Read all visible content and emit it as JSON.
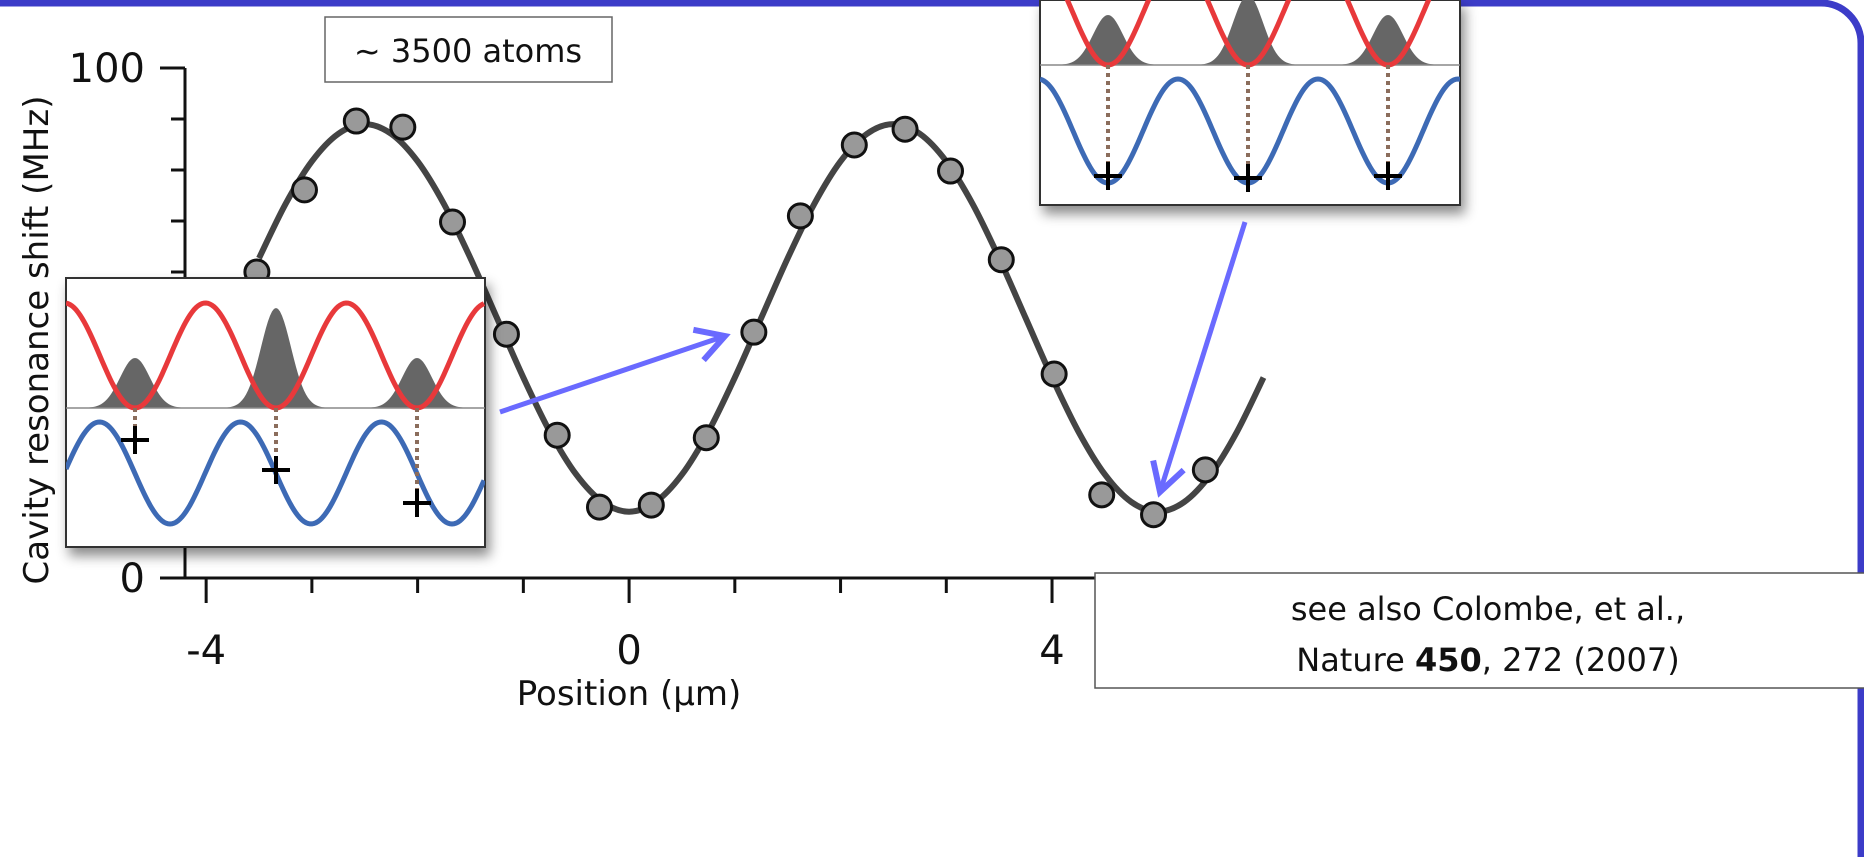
{
  "chart_data": {
    "type": "scatter",
    "x_label": "Position (µm)",
    "y_label": "Cavity resonance shift (MHz)",
    "xlim": [
      -4.2,
      6.0
    ],
    "ylim": [
      0,
      100
    ],
    "xticks": [
      -4,
      0,
      4
    ],
    "xminor_ticks": [
      -3,
      -2,
      -1,
      1,
      2,
      3,
      5
    ],
    "yticks": [
      0,
      100
    ],
    "yminor_ticks": [
      10,
      20,
      30,
      40,
      50,
      60,
      70,
      80,
      90
    ],
    "series": [
      {
        "color": "#999999",
        "x": [
          -3.52,
          -3.07,
          -2.58,
          -2.14,
          -1.67,
          -1.16,
          -0.68,
          -0.28,
          0.21,
          0.73,
          1.18,
          1.62,
          2.13,
          2.61,
          3.04,
          3.52,
          4.02,
          4.47,
          4.96,
          5.45
        ],
        "values": [
          60.0,
          76.1,
          89.6,
          88.4,
          69.8,
          47.8,
          28.0,
          13.9,
          14.3,
          27.5,
          48.2,
          71.0,
          84.9,
          88.0,
          79.8,
          62.4,
          40.0,
          16.3,
          12.4,
          21.2
        ]
      }
    ],
    "fit": {
      "color": "#444444",
      "x": [
        -3.5,
        -3.25,
        -3.0,
        -2.75,
        -2.5,
        -2.25,
        -2.0,
        -1.75,
        -1.5,
        -1.25,
        -1.0,
        -0.75,
        -0.5,
        -0.25,
        0,
        0.25,
        0.5,
        0.75,
        1.0,
        1.25,
        1.5,
        1.75,
        2.0,
        2.25,
        2.5,
        2.75,
        3.0,
        3.25,
        3.5,
        3.75,
        4.0,
        4.25,
        4.5,
        4.75,
        5.0,
        5.25,
        5.5,
        5.75,
        6.0
      ],
      "values": [
        62.7,
        73.3,
        81.7,
        87.1,
        89.0,
        87.1,
        81.7,
        73.3,
        62.7,
        51.0,
        39.3,
        28.7,
        20.3,
        14.9,
        13.0,
        14.9,
        20.3,
        28.7,
        39.3,
        51.0,
        62.7,
        73.3,
        81.7,
        87.1,
        89.0,
        87.1,
        81.7,
        73.3,
        62.7,
        51.0,
        39.3,
        28.7,
        20.3,
        14.9,
        13.0,
        14.9,
        20.3,
        28.7,
        39.3
      ]
    },
    "annotations": {
      "atoms": "~ 3500 atoms",
      "citation": {
        "line1": "see also Colombe, et al.,",
        "journal": "Nature",
        "volume": "450",
        "rest": ", 272 (2007)"
      }
    }
  }
}
